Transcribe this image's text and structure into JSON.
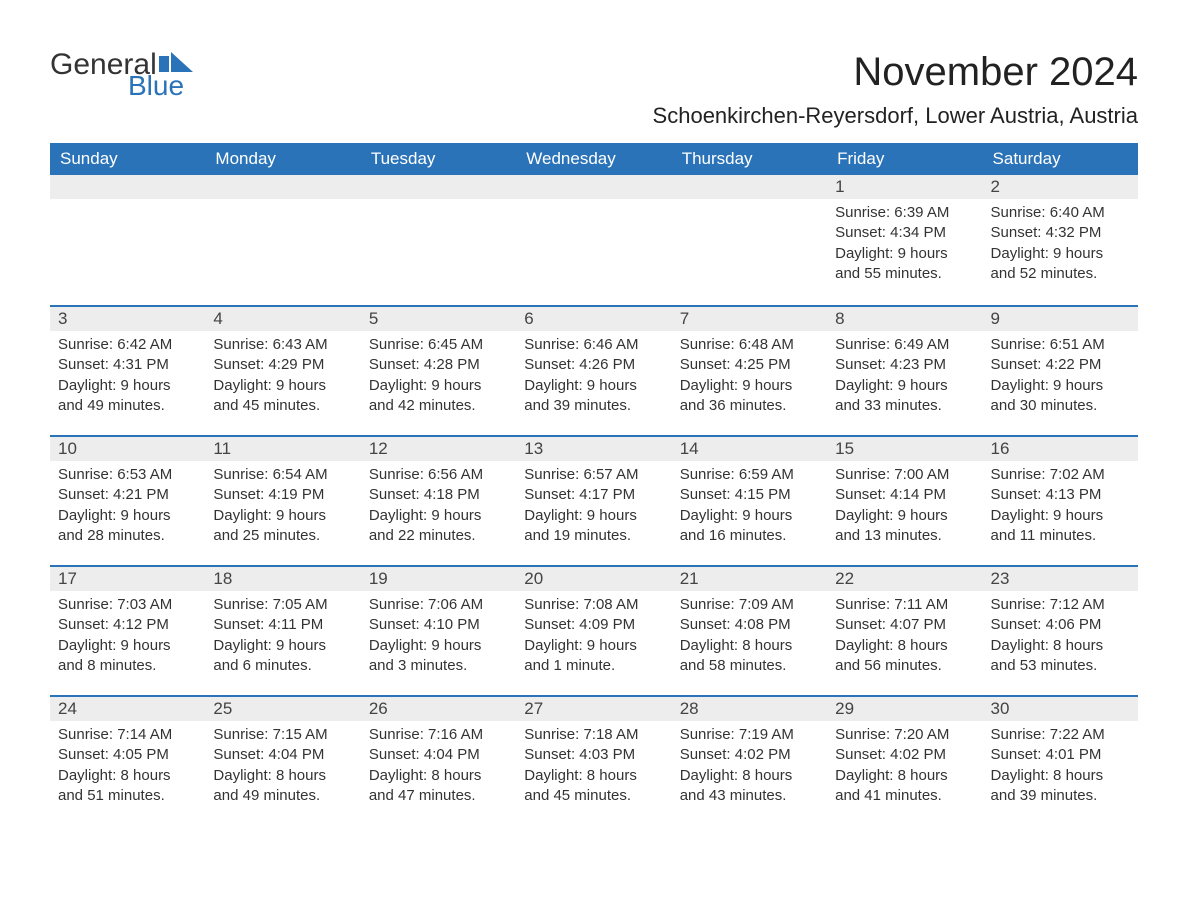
{
  "brand": {
    "part1": "General",
    "part2": "Blue"
  },
  "title": "November 2024",
  "location": "Schoenkirchen-Reyersdorf, Lower Austria, Austria",
  "colors": {
    "accent": "#2a73b8",
    "header_text": "#ffffff",
    "daynum_bg": "#ededed",
    "body_text": "#333333",
    "page_bg": "#ffffff"
  },
  "day_names": [
    "Sunday",
    "Monday",
    "Tuesday",
    "Wednesday",
    "Thursday",
    "Friday",
    "Saturday"
  ],
  "weeks": [
    [
      {
        "n": "",
        "sunrise": "",
        "sunset": "",
        "d1": "",
        "d2": ""
      },
      {
        "n": "",
        "sunrise": "",
        "sunset": "",
        "d1": "",
        "d2": ""
      },
      {
        "n": "",
        "sunrise": "",
        "sunset": "",
        "d1": "",
        "d2": ""
      },
      {
        "n": "",
        "sunrise": "",
        "sunset": "",
        "d1": "",
        "d2": ""
      },
      {
        "n": "",
        "sunrise": "",
        "sunset": "",
        "d1": "",
        "d2": ""
      },
      {
        "n": "1",
        "sunrise": "Sunrise: 6:39 AM",
        "sunset": "Sunset: 4:34 PM",
        "d1": "Daylight: 9 hours",
        "d2": "and 55 minutes."
      },
      {
        "n": "2",
        "sunrise": "Sunrise: 6:40 AM",
        "sunset": "Sunset: 4:32 PM",
        "d1": "Daylight: 9 hours",
        "d2": "and 52 minutes."
      }
    ],
    [
      {
        "n": "3",
        "sunrise": "Sunrise: 6:42 AM",
        "sunset": "Sunset: 4:31 PM",
        "d1": "Daylight: 9 hours",
        "d2": "and 49 minutes."
      },
      {
        "n": "4",
        "sunrise": "Sunrise: 6:43 AM",
        "sunset": "Sunset: 4:29 PM",
        "d1": "Daylight: 9 hours",
        "d2": "and 45 minutes."
      },
      {
        "n": "5",
        "sunrise": "Sunrise: 6:45 AM",
        "sunset": "Sunset: 4:28 PM",
        "d1": "Daylight: 9 hours",
        "d2": "and 42 minutes."
      },
      {
        "n": "6",
        "sunrise": "Sunrise: 6:46 AM",
        "sunset": "Sunset: 4:26 PM",
        "d1": "Daylight: 9 hours",
        "d2": "and 39 minutes."
      },
      {
        "n": "7",
        "sunrise": "Sunrise: 6:48 AM",
        "sunset": "Sunset: 4:25 PM",
        "d1": "Daylight: 9 hours",
        "d2": "and 36 minutes."
      },
      {
        "n": "8",
        "sunrise": "Sunrise: 6:49 AM",
        "sunset": "Sunset: 4:23 PM",
        "d1": "Daylight: 9 hours",
        "d2": "and 33 minutes."
      },
      {
        "n": "9",
        "sunrise": "Sunrise: 6:51 AM",
        "sunset": "Sunset: 4:22 PM",
        "d1": "Daylight: 9 hours",
        "d2": "and 30 minutes."
      }
    ],
    [
      {
        "n": "10",
        "sunrise": "Sunrise: 6:53 AM",
        "sunset": "Sunset: 4:21 PM",
        "d1": "Daylight: 9 hours",
        "d2": "and 28 minutes."
      },
      {
        "n": "11",
        "sunrise": "Sunrise: 6:54 AM",
        "sunset": "Sunset: 4:19 PM",
        "d1": "Daylight: 9 hours",
        "d2": "and 25 minutes."
      },
      {
        "n": "12",
        "sunrise": "Sunrise: 6:56 AM",
        "sunset": "Sunset: 4:18 PM",
        "d1": "Daylight: 9 hours",
        "d2": "and 22 minutes."
      },
      {
        "n": "13",
        "sunrise": "Sunrise: 6:57 AM",
        "sunset": "Sunset: 4:17 PM",
        "d1": "Daylight: 9 hours",
        "d2": "and 19 minutes."
      },
      {
        "n": "14",
        "sunrise": "Sunrise: 6:59 AM",
        "sunset": "Sunset: 4:15 PM",
        "d1": "Daylight: 9 hours",
        "d2": "and 16 minutes."
      },
      {
        "n": "15",
        "sunrise": "Sunrise: 7:00 AM",
        "sunset": "Sunset: 4:14 PM",
        "d1": "Daylight: 9 hours",
        "d2": "and 13 minutes."
      },
      {
        "n": "16",
        "sunrise": "Sunrise: 7:02 AM",
        "sunset": "Sunset: 4:13 PM",
        "d1": "Daylight: 9 hours",
        "d2": "and 11 minutes."
      }
    ],
    [
      {
        "n": "17",
        "sunrise": "Sunrise: 7:03 AM",
        "sunset": "Sunset: 4:12 PM",
        "d1": "Daylight: 9 hours",
        "d2": "and 8 minutes."
      },
      {
        "n": "18",
        "sunrise": "Sunrise: 7:05 AM",
        "sunset": "Sunset: 4:11 PM",
        "d1": "Daylight: 9 hours",
        "d2": "and 6 minutes."
      },
      {
        "n": "19",
        "sunrise": "Sunrise: 7:06 AM",
        "sunset": "Sunset: 4:10 PM",
        "d1": "Daylight: 9 hours",
        "d2": "and 3 minutes."
      },
      {
        "n": "20",
        "sunrise": "Sunrise: 7:08 AM",
        "sunset": "Sunset: 4:09 PM",
        "d1": "Daylight: 9 hours",
        "d2": "and 1 minute."
      },
      {
        "n": "21",
        "sunrise": "Sunrise: 7:09 AM",
        "sunset": "Sunset: 4:08 PM",
        "d1": "Daylight: 8 hours",
        "d2": "and 58 minutes."
      },
      {
        "n": "22",
        "sunrise": "Sunrise: 7:11 AM",
        "sunset": "Sunset: 4:07 PM",
        "d1": "Daylight: 8 hours",
        "d2": "and 56 minutes."
      },
      {
        "n": "23",
        "sunrise": "Sunrise: 7:12 AM",
        "sunset": "Sunset: 4:06 PM",
        "d1": "Daylight: 8 hours",
        "d2": "and 53 minutes."
      }
    ],
    [
      {
        "n": "24",
        "sunrise": "Sunrise: 7:14 AM",
        "sunset": "Sunset: 4:05 PM",
        "d1": "Daylight: 8 hours",
        "d2": "and 51 minutes."
      },
      {
        "n": "25",
        "sunrise": "Sunrise: 7:15 AM",
        "sunset": "Sunset: 4:04 PM",
        "d1": "Daylight: 8 hours",
        "d2": "and 49 minutes."
      },
      {
        "n": "26",
        "sunrise": "Sunrise: 7:16 AM",
        "sunset": "Sunset: 4:04 PM",
        "d1": "Daylight: 8 hours",
        "d2": "and 47 minutes."
      },
      {
        "n": "27",
        "sunrise": "Sunrise: 7:18 AM",
        "sunset": "Sunset: 4:03 PM",
        "d1": "Daylight: 8 hours",
        "d2": "and 45 minutes."
      },
      {
        "n": "28",
        "sunrise": "Sunrise: 7:19 AM",
        "sunset": "Sunset: 4:02 PM",
        "d1": "Daylight: 8 hours",
        "d2": "and 43 minutes."
      },
      {
        "n": "29",
        "sunrise": "Sunrise: 7:20 AM",
        "sunset": "Sunset: 4:02 PM",
        "d1": "Daylight: 8 hours",
        "d2": "and 41 minutes."
      },
      {
        "n": "30",
        "sunrise": "Sunrise: 7:22 AM",
        "sunset": "Sunset: 4:01 PM",
        "d1": "Daylight: 8 hours",
        "d2": "and 39 minutes."
      }
    ]
  ]
}
